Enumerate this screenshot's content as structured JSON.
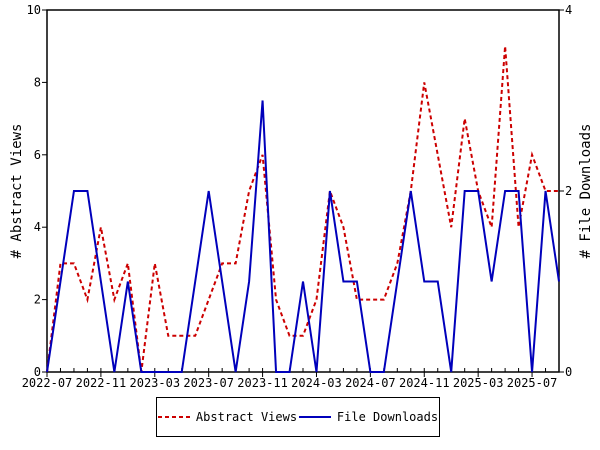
{
  "chart_data": {
    "type": "line",
    "title": "",
    "xlabel": "",
    "ylabel": "# Abstract Views",
    "y2label": "# File Downloads",
    "ylim": [
      0,
      10
    ],
    "y2lim": [
      0,
      4
    ],
    "yticks": [
      "0",
      "2",
      "4",
      "6",
      "8",
      "10"
    ],
    "y2ticks": [
      "0",
      "2",
      "4"
    ],
    "xticks": [
      "2022-07",
      "2022-11",
      "2023-03",
      "2023-07",
      "2023-11",
      "2024-03",
      "2024-07",
      "2024-11",
      "2025-03",
      "2025-07"
    ],
    "x": [
      "2022-07",
      "2022-08",
      "2022-09",
      "2022-10",
      "2022-11",
      "2022-12",
      "2023-01",
      "2023-02",
      "2023-03",
      "2023-04",
      "2023-05",
      "2023-06",
      "2023-07",
      "2023-08",
      "2023-09",
      "2023-10",
      "2023-11",
      "2023-12",
      "2024-01",
      "2024-02",
      "2024-03",
      "2024-04",
      "2024-05",
      "2024-06",
      "2024-07",
      "2024-08",
      "2024-09",
      "2024-10",
      "2024-11",
      "2024-12",
      "2025-01",
      "2025-02",
      "2025-03",
      "2025-04",
      "2025-05",
      "2025-06",
      "2025-07",
      "2025-08",
      "2025-09"
    ],
    "series": [
      {
        "name": "Abstract Views",
        "axis": "left",
        "color": "#cc0000",
        "style": "dashed",
        "values": [
          0,
          3,
          3,
          2,
          4,
          2,
          3,
          0,
          3,
          1,
          1,
          1,
          2,
          3,
          3,
          5,
          6,
          2,
          1,
          1,
          2,
          5,
          4,
          2,
          2,
          2,
          3,
          5,
          8,
          6,
          4,
          7,
          5,
          4,
          9,
          4,
          6,
          5,
          5
        ]
      },
      {
        "name": "File Downloads",
        "axis": "right",
        "color": "#0000bb",
        "style": "solid",
        "values": [
          0,
          1,
          2,
          2,
          1,
          0,
          1,
          0,
          0,
          0,
          0,
          1,
          2,
          1,
          0,
          1,
          3,
          0,
          0,
          1,
          0,
          2,
          1,
          1,
          0,
          0,
          1,
          2,
          1,
          1,
          0,
          2,
          2,
          1,
          2,
          2,
          0,
          2,
          1
        ]
      }
    ],
    "legend": "bottom-center",
    "grid": false
  }
}
